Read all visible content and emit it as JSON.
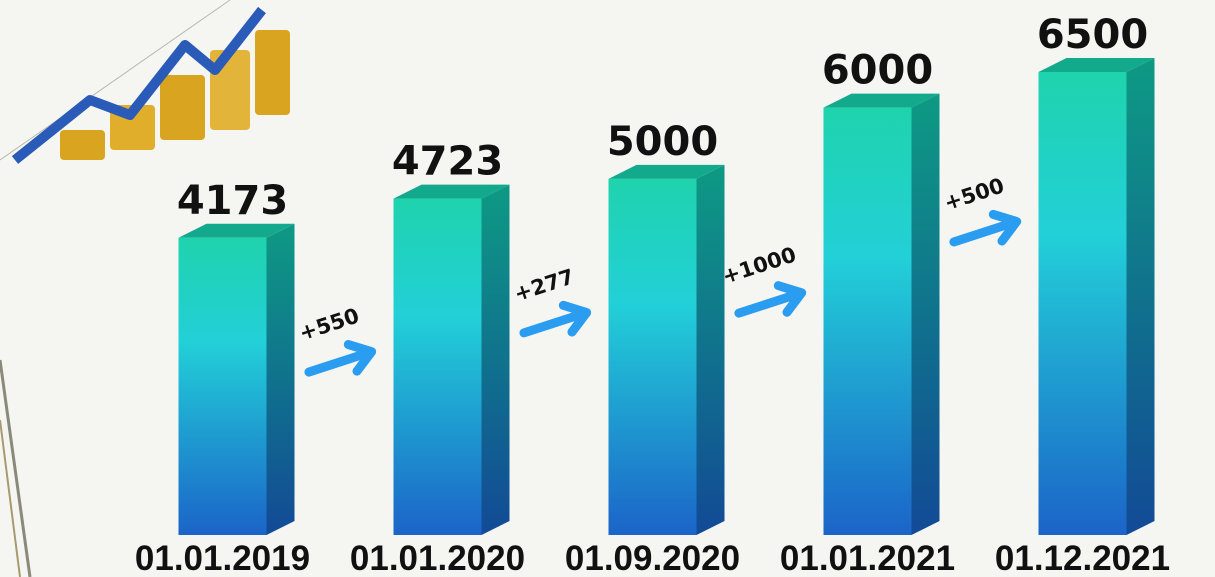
{
  "chart_data": {
    "type": "bar3d",
    "categories": [
      "01.01.2019",
      "01.01.2020",
      "01.09.2020",
      "01.01.2021",
      "01.12.2021"
    ],
    "values": [
      4173,
      4723,
      5000,
      6000,
      6500
    ],
    "annotations": [
      "+550",
      "+277",
      "+1000",
      "+500"
    ],
    "ylim": [
      0,
      6500
    ],
    "colors": {
      "top": "#1fd3ad",
      "bottom": "#1b64c8",
      "arrow": "#2a9df0"
    }
  }
}
